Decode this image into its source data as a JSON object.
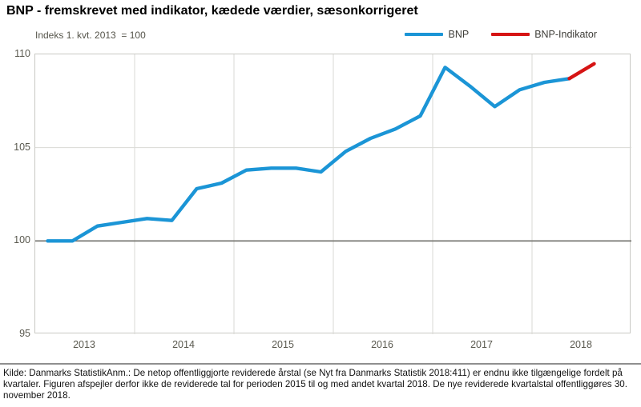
{
  "header": {
    "title": "BNP - fremskrevet med indikator, kædede værdier, sæsonkorrigeret"
  },
  "chart_data": {
    "type": "line",
    "subtitle": "Indeks 1. kvt. 2013  = 100",
    "x_tick_labels": [
      "2013",
      "2014",
      "2015",
      "2016",
      "2017",
      "2018"
    ],
    "y_ticks": [
      110,
      105,
      100,
      95
    ],
    "ylim": [
      95,
      110
    ],
    "baseline_value": 100,
    "grid": true,
    "legend_position": "top-right",
    "series": [
      {
        "name": "BNP",
        "color": "#1b95d6",
        "quarters": [
          "2013Q1",
          "2013Q2",
          "2013Q3",
          "2013Q4",
          "2014Q1",
          "2014Q2",
          "2014Q3",
          "2014Q4",
          "2015Q1",
          "2015Q2",
          "2015Q3",
          "2015Q4",
          "2016Q1",
          "2016Q2",
          "2016Q3",
          "2016Q4",
          "2017Q1",
          "2017Q2",
          "2017Q3",
          "2017Q4",
          "2018Q1",
          "2018Q2"
        ],
        "values": [
          100.0,
          100.0,
          100.8,
          101.0,
          101.2,
          101.1,
          102.8,
          103.1,
          103.8,
          103.9,
          103.9,
          103.7,
          104.8,
          105.5,
          106.0,
          106.7,
          109.3,
          108.3,
          107.2,
          108.1,
          108.5,
          108.7
        ]
      },
      {
        "name": "BNP-Indikator",
        "color": "#d61414",
        "quarters": [
          "2018Q2",
          "2018Q3"
        ],
        "values": [
          108.7,
          109.5
        ]
      }
    ]
  },
  "footer": {
    "text": "Kilde: Danmarks StatistikAnm.: De netop offentliggjorte reviderede årstal (se Nyt fra Danmarks Statistik 2018:411) er endnu ikke tilgængelige fordelt på kvartaler. Figuren afspejler derfor ikke de reviderede tal for perioden 2015 til og med andet kvartal 2018. De nye reviderede kvartalstal offentliggøres 30. november 2018."
  }
}
